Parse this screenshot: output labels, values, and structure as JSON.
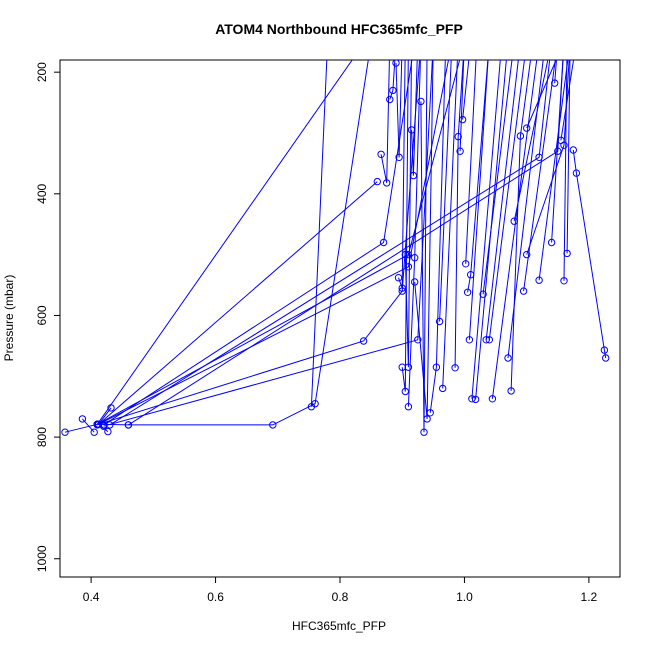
{
  "chart_data": {
    "type": "line",
    "title": "ATOM4 Northbound HFC365mfc_PFP",
    "xlabel": "HFC365mfc_PFP",
    "ylabel": "Pressure (mbar)",
    "xlim": [
      0.35,
      1.25
    ],
    "ylim": [
      1030,
      180
    ],
    "y_reversed": true,
    "xticks": [
      0.4,
      0.6,
      0.8,
      1.0,
      1.2
    ],
    "xtick_labels": [
      "0.4",
      "0.6",
      "0.8",
      "1.0",
      "1.2"
    ],
    "yticks": [
      200,
      400,
      600,
      800,
      1000
    ],
    "ytick_labels": [
      "200",
      "400",
      "600",
      "800",
      "1000"
    ],
    "grid": false,
    "color": "#0000ff",
    "series": [
      {
        "profiles": [
          [
            [
              0.358,
              792
            ],
            [
              0.41,
              779
            ]
          ],
          [
            [
              0.386,
              770
            ],
            [
              0.405,
              792
            ]
          ],
          [
            [
              0.427,
              791
            ],
            [
              0.412,
              779
            ],
            [
              0.86,
              380
            ]
          ],
          [
            [
              0.432,
              752
            ],
            [
              0.412,
              779
            ],
            [
              0.838,
              642
            ],
            [
              0.9,
              560
            ],
            [
              0.93,
              150
            ]
          ],
          [
            [
              0.41,
              779
            ],
            [
              0.46,
              780
            ],
            [
              0.692,
              780
            ],
            [
              0.76,
              745
            ],
            [
              0.85,
              150
            ]
          ],
          [
            [
              0.42,
              780
            ],
            [
              0.87,
              480
            ],
            [
              0.92,
              150
            ]
          ],
          [
            [
              0.43,
              780
            ],
            [
              1.12,
              340
            ],
            [
              1.14,
              150
            ]
          ],
          [
            [
              0.41,
              779
            ],
            [
              0.91,
              500
            ],
            [
              1.0,
              150
            ]
          ],
          [
            [
              0.46,
              780
            ],
            [
              1.15,
              330
            ],
            [
              1.16,
              150
            ]
          ],
          [
            [
              0.42,
              782
            ],
            [
              0.925,
              640
            ],
            [
              0.95,
              150
            ]
          ],
          [
            [
              0.41,
              779
            ],
            [
              0.84,
              150
            ]
          ],
          [
            [
              0.41,
              780
            ],
            [
              0.91,
              520
            ],
            [
              0.98,
              150
            ]
          ],
          [
            [
              0.754,
              750
            ],
            [
              0.78,
              150
            ]
          ],
          [
            [
              0.866,
              335
            ],
            [
              0.875,
              382
            ],
            [
              0.88,
              150
            ]
          ],
          [
            [
              0.88,
              245
            ],
            [
              0.885,
              230
            ],
            [
              0.89,
              150
            ]
          ],
          [
            [
              0.89,
              185
            ],
            [
              0.895,
              340
            ],
            [
              0.9,
              150
            ]
          ],
          [
            [
              0.894,
              538
            ],
            [
              0.9,
              555
            ],
            [
              0.905,
              150
            ]
          ],
          [
            [
              0.9,
              685
            ],
            [
              0.905,
              725
            ],
            [
              0.91,
              150
            ]
          ],
          [
            [
              0.905,
              500
            ],
            [
              0.91,
              685
            ],
            [
              0.915,
              150
            ]
          ],
          [
            [
              0.91,
              750
            ],
            [
              0.92,
              505
            ],
            [
              0.93,
              150
            ]
          ],
          [
            [
              0.915,
              295
            ],
            [
              0.918,
              370
            ],
            [
              0.925,
              150
            ]
          ],
          [
            [
              0.92,
              545
            ],
            [
              0.94,
              770
            ],
            [
              0.95,
              150
            ]
          ],
          [
            [
              0.93,
              248
            ],
            [
              0.935,
              792
            ],
            [
              0.94,
              150
            ]
          ],
          [
            [
              0.945,
              760
            ],
            [
              0.955,
              685
            ],
            [
              0.97,
              150
            ]
          ],
          [
            [
              0.96,
              610
            ],
            [
              0.98,
              150
            ]
          ],
          [
            [
              0.965,
              720
            ],
            [
              0.99,
              150
            ]
          ],
          [
            [
              0.985,
              686
            ],
            [
              0.99,
              306
            ],
            [
              1.0,
              150
            ]
          ],
          [
            [
              0.993,
              330
            ],
            [
              1.0,
              150
            ]
          ],
          [
            [
              0.997,
              278
            ],
            [
              1.01,
              150
            ]
          ],
          [
            [
              1.002,
              515
            ],
            [
              1.02,
              150
            ]
          ],
          [
            [
              1.005,
              562
            ],
            [
              1.01,
              533
            ],
            [
              1.04,
              150
            ]
          ],
          [
            [
              1.008,
              640
            ],
            [
              1.04,
              150
            ]
          ],
          [
            [
              1.012,
              737
            ],
            [
              1.06,
              150
            ]
          ],
          [
            [
              1.018,
              738
            ],
            [
              1.07,
              150
            ]
          ],
          [
            [
              1.03,
              565
            ],
            [
              1.08,
              150
            ]
          ],
          [
            [
              1.035,
              640
            ],
            [
              1.09,
              150
            ]
          ],
          [
            [
              1.04,
              640
            ],
            [
              1.1,
              150
            ]
          ],
          [
            [
              1.045,
              737
            ],
            [
              1.12,
              150
            ]
          ],
          [
            [
              1.07,
              670
            ],
            [
              1.13,
              150
            ]
          ],
          [
            [
              1.075,
              724
            ],
            [
              1.09,
              305
            ],
            [
              1.11,
              150
            ]
          ],
          [
            [
              1.08,
              445
            ],
            [
              1.14,
              150
            ]
          ],
          [
            [
              1.095,
              560
            ],
            [
              1.15,
              150
            ]
          ],
          [
            [
              1.1,
              292
            ],
            [
              1.16,
              150
            ]
          ],
          [
            [
              1.12,
              542
            ],
            [
              1.17,
              150
            ]
          ],
          [
            [
              1.14,
              480
            ],
            [
              1.16,
              150
            ]
          ],
          [
            [
              1.145,
              218
            ],
            [
              1.15,
              150
            ]
          ],
          [
            [
              1.16,
              543
            ],
            [
              1.165,
              150
            ]
          ],
          [
            [
              1.165,
              498
            ],
            [
              1.17,
              150
            ]
          ],
          [
            [
              1.155,
              312
            ],
            [
              1.18,
              150
            ]
          ],
          [
            [
              1.175,
              328
            ],
            [
              1.18,
              366
            ],
            [
              1.225,
              657
            ],
            [
              1.227,
              670
            ]
          ],
          [
            [
              1.1,
              500
            ],
            [
              1.16,
              320
            ],
            [
              1.17,
              150
            ]
          ]
        ]
      }
    ]
  }
}
